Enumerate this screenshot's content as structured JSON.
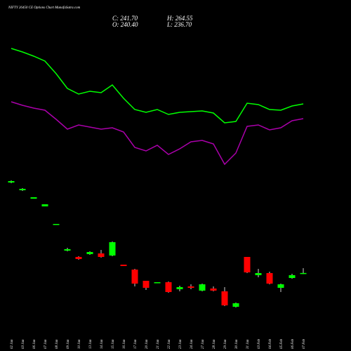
{
  "chart_data": {
    "type": "candlestick",
    "title": "NIFTY 26450  CE Options Chart MunafaSutra.com",
    "readout": [
      "C: 241.70",
      "H: 264.55",
      "O: 240.40",
      "L: 236.70"
    ],
    "categories": [
      "02 Jan",
      "03 Jan",
      "06 Jan",
      "07 Jan",
      "08 Jan",
      "09 Jan",
      "10 Jan",
      "13 Jan",
      "14 Jan",
      "15 Jan",
      "16 Jan",
      "17 Jan",
      "20 Jan",
      "21 Jan",
      "22 Jan",
      "23 Jan",
      "24 Jan",
      "27 Jan",
      "28 Jan",
      "29 Jan",
      "30 Jan",
      "31 Jan",
      "03 Feb",
      "04 Feb",
      "05 Feb",
      "06 Feb",
      "07 Feb"
    ],
    "open": [
      667,
      630.7,
      591.1,
      554.8,
      469,
      346.9,
      317.2,
      330.4,
      333.7,
      323.8,
      280.9,
      257.8,
      205,
      195.1,
      198.4,
      165.4,
      178.6,
      158.8,
      168.7,
      155.5,
      82.9,
      317.2,
      231.4,
      241.3,
      172,
      218.2,
      240.4
    ],
    "high": [
      676.9,
      640.6,
      597.7,
      564.7,
      472.3,
      360.1,
      320.5,
      343.6,
      350.2,
      389.8,
      280.9,
      261.1,
      205,
      198.4,
      201.7,
      181.9,
      188.5,
      191.8,
      178.6,
      175.3,
      102.7,
      317.2,
      261.1,
      247.9,
      191.8,
      238,
      264.55
    ],
    "low": [
      663.7,
      627.4,
      591.1,
      554.8,
      469,
      343.6,
      304,
      327.1,
      313.9,
      320.5,
      274.3,
      178.6,
      162.1,
      195.1,
      148.9,
      155.5,
      165.4,
      155.5,
      155.5,
      86.2,
      79.6,
      241.3,
      221.5,
      188.5,
      152.2,
      214.9,
      236.7
    ],
    "close": [
      673.6,
      637.3,
      597.7,
      564.7,
      472.3,
      353.5,
      307.3,
      340.3,
      317.2,
      386.5,
      274.3,
      191.8,
      172,
      198.4,
      152.2,
      175.3,
      172,
      188.5,
      158.8,
      89.5,
      99.4,
      244.6,
      241.3,
      191.8,
      188.5,
      231.4,
      241.7
    ],
    "up_color": "#00ff00",
    "down_color": "#ff0000",
    "wick_color": "#cccccc",
    "lines": [
      {
        "color": "#00ff00",
        "values": [
          1297.3,
          1280.8,
          1261,
          1237.9,
          1178.5,
          1109.2,
          1082.8,
          1096,
          1089.4,
          1125.7,
          1063,
          1010.2,
          997,
          1010.2,
          987.1,
          997,
          1000.3,
          1003.6,
          993.7,
          947.5,
          954.1,
          1039.9,
          1033.3,
          1010.2,
          1006.9,
          1026.7,
          1036.6
        ]
      },
      {
        "color": "#aa00aa",
        "values": [
          1046.5,
          1030,
          1016.8,
          1006.9,
          964,
          917.8,
          937.6,
          927.7,
          917.8,
          924.4,
          904.6,
          832,
          815.5,
          842.1,
          799,
          825.4,
          858.4,
          865,
          848.5,
          752.8,
          805.6,
          931,
          937.6,
          914.5,
          924.4,
          957.4,
          967.3
        ]
      }
    ],
    "ylim": [
      -125,
      1525
    ]
  }
}
